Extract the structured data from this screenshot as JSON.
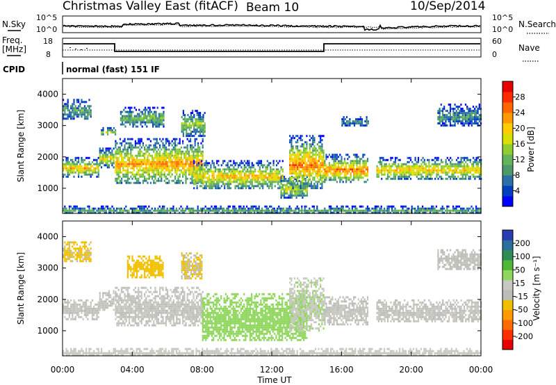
{
  "header": {
    "station": "Christmas Valley East (fitACF)",
    "beam": "Beam 10",
    "date": "10/Sep/2014"
  },
  "top_panel": {
    "nsky_label": "N.Sky",
    "nsky_ticks": [
      "10^5",
      "10^0"
    ],
    "nsearch_label": "N.Search",
    "nsearch_ticks": [
      "10^5",
      "10^0"
    ],
    "freq_label_1": "Freq.",
    "freq_label_2": "[MHz]",
    "freq_ticks": [
      "18",
      "8"
    ],
    "nave_label": "Nave",
    "nave_ticks": [
      "60",
      "0"
    ],
    "cpid_label": "CPID",
    "cpid_value": "normal (fast) 151 IF"
  },
  "chart_data": [
    {
      "type": "heatmap",
      "name": "power",
      "ylabel": "Slant Range [km]",
      "ylim": [
        200,
        4500
      ],
      "yticks": [
        "4000",
        "3000",
        "2000",
        "1000"
      ],
      "xlim": [
        0,
        24
      ],
      "colorbar_label": "Power [dB]",
      "colorbar_ticks": [
        "28",
        "24",
        "20",
        "16",
        "12",
        "8",
        "4"
      ],
      "colorscale": [
        "#0000ff",
        "#003fbf",
        "#2a6fa8",
        "#4c9a6a",
        "#62b35a",
        "#8fce2e",
        "#d7e000",
        "#ffcc00",
        "#ff9900",
        "#ff6600",
        "#ff2a00",
        "#e60000"
      ],
      "echo_bands": [
        {
          "t0": 0.0,
          "t1": 2.1,
          "r0": 1400,
          "r1": 2000,
          "peak_db": 20
        },
        {
          "t0": 0.0,
          "t1": 1.6,
          "r0": 3200,
          "r1": 3850,
          "peak_db": 10
        },
        {
          "t0": 2.1,
          "t1": 2.9,
          "r0": 1700,
          "r1": 2300,
          "peak_db": 18
        },
        {
          "t0": 2.2,
          "t1": 3.0,
          "r0": 2700,
          "r1": 2950,
          "peak_db": 14
        },
        {
          "t0": 3.0,
          "t1": 8.0,
          "r0": 1150,
          "r1": 2600,
          "peak_db": 22
        },
        {
          "t0": 3.3,
          "t1": 5.8,
          "r0": 3000,
          "r1": 3600,
          "peak_db": 12
        },
        {
          "t0": 6.8,
          "t1": 8.2,
          "r0": 2700,
          "r1": 3500,
          "peak_db": 14
        },
        {
          "t0": 7.5,
          "t1": 12.6,
          "r0": 1000,
          "r1": 1900,
          "peak_db": 20
        },
        {
          "t0": 12.5,
          "t1": 14.0,
          "r0": 700,
          "r1": 1400,
          "peak_db": 16
        },
        {
          "t0": 13.0,
          "t1": 15.0,
          "r0": 1000,
          "r1": 2700,
          "peak_db": 24
        },
        {
          "t0": 15.0,
          "t1": 17.5,
          "r0": 1200,
          "r1": 2100,
          "peak_db": 24
        },
        {
          "t0": 16.0,
          "t1": 17.5,
          "r0": 3000,
          "r1": 3300,
          "peak_db": 8
        },
        {
          "t0": 18.0,
          "t1": 24.0,
          "r0": 1300,
          "r1": 2000,
          "peak_db": 20
        },
        {
          "t0": 21.5,
          "t1": 24.0,
          "r0": 3000,
          "r1": 3700,
          "peak_db": 8
        },
        {
          "t0": 0.0,
          "t1": 24.0,
          "r0": 200,
          "r1": 450,
          "peak_db": 10
        }
      ]
    },
    {
      "type": "heatmap",
      "name": "velocity",
      "ylabel": "Slant Range [km]",
      "ylim": [
        200,
        4500
      ],
      "yticks": [
        "4000",
        "3000",
        "2000",
        "1000"
      ],
      "xlim": [
        0,
        24
      ],
      "colorbar_label": "Velocity [m s⁻¹]",
      "colorbar_ticks": [
        "200",
        "100",
        "50",
        "15",
        "-15",
        "-50",
        "-100",
        "-200"
      ],
      "colorscale": [
        "#2a3cb0",
        "#2a6e9e",
        "#2f8b57",
        "#4fb838",
        "#8fd65c",
        "#c8c8c0",
        "#bdbdb8",
        "#f0c000",
        "#ff9900",
        "#ff6a00",
        "#ff3000",
        "#e60000"
      ],
      "echo_bands": [
        {
          "t0": 0.0,
          "t1": 2.1,
          "r0": 1400,
          "r1": 2000,
          "vel": 0
        },
        {
          "t0": 0.0,
          "t1": 1.6,
          "r0": 3200,
          "r1": 3850,
          "vel": -50
        },
        {
          "t0": 2.1,
          "t1": 2.9,
          "r0": 1700,
          "r1": 2300,
          "vel": 0
        },
        {
          "t0": 3.0,
          "t1": 8.0,
          "r0": 1150,
          "r1": 2400,
          "vel": 0
        },
        {
          "t0": 3.7,
          "t1": 5.8,
          "r0": 2700,
          "r1": 3400,
          "vel": -60
        },
        {
          "t0": 6.8,
          "t1": 8.0,
          "r0": 2700,
          "r1": 3500,
          "vel": -40
        },
        {
          "t0": 8.0,
          "t1": 14.0,
          "r0": 700,
          "r1": 2200,
          "vel": 60
        },
        {
          "t0": 13.0,
          "t1": 15.0,
          "r0": 1000,
          "r1": 2700,
          "vel": 30
        },
        {
          "t0": 15.0,
          "t1": 17.5,
          "r0": 1200,
          "r1": 2100,
          "vel": 0
        },
        {
          "t0": 18.0,
          "t1": 24.0,
          "r0": 1300,
          "r1": 2000,
          "vel": 0
        },
        {
          "t0": 21.5,
          "t1": 24.0,
          "r0": 3000,
          "r1": 3600,
          "vel": -10
        },
        {
          "t0": 0.0,
          "t1": 24.0,
          "r0": 200,
          "r1": 450,
          "vel": 20
        }
      ]
    }
  ],
  "x_axis": {
    "ticks": [
      "00:00",
      "04:00",
      "08:00",
      "12:00",
      "16:00",
      "20:00",
      "00:00"
    ],
    "xlabel": "Time UT"
  }
}
